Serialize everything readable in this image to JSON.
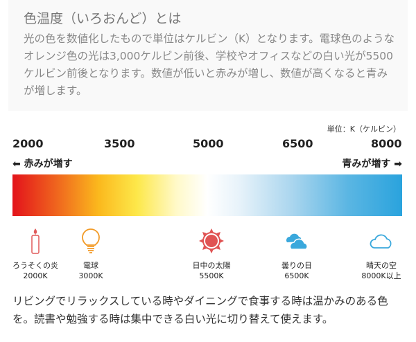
{
  "intro": {
    "title": "色温度（いろおんど）とは",
    "body": "光の色を数値化したもので単位はケルビン（K）となります。電球色のようなオレンジ色の光は3,000ケルビン前後、学校やオフィスなどの白い光が5500ケルビン前後となります。数値が低いと赤みが増し、数値が高くなると青みが増します。"
  },
  "scale": {
    "unit": "単位：K（ケルビン）",
    "ticks": [
      "2000",
      "3500",
      "5000",
      "6500",
      "8000"
    ],
    "left_label": "⬅ 赤みが増す",
    "right_label": "青みが増す ➡",
    "colors": {
      "red": "#e3131b",
      "yellow": "#fde84a",
      "white": "#ffffff",
      "blue": "#2aa3dd"
    }
  },
  "examples": [
    {
      "icon": "candle-icon",
      "name": "ろうそくの炎",
      "value": "2000K",
      "color": "#e05a5a"
    },
    {
      "icon": "light-bulb-icon",
      "name": "電球",
      "value": "3000K",
      "color": "#f29a25"
    },
    {
      "icon": "sun-icon",
      "name": "日中の太陽",
      "value": "5500K",
      "color": "#e05353"
    },
    {
      "icon": "clouds-icon",
      "name": "曇りの日",
      "value": "6500K",
      "color": "#3aa8dc"
    },
    {
      "icon": "cloud-outline-icon",
      "name": "晴天の空",
      "value": "8000K以上",
      "color": "#3aa8dc"
    }
  ],
  "footer": "リビングでリラックスしている時やダイニングで食事する時は温かみのある色を。読書や勉強する時は集中できる白い光に切り替えて使えます。"
}
